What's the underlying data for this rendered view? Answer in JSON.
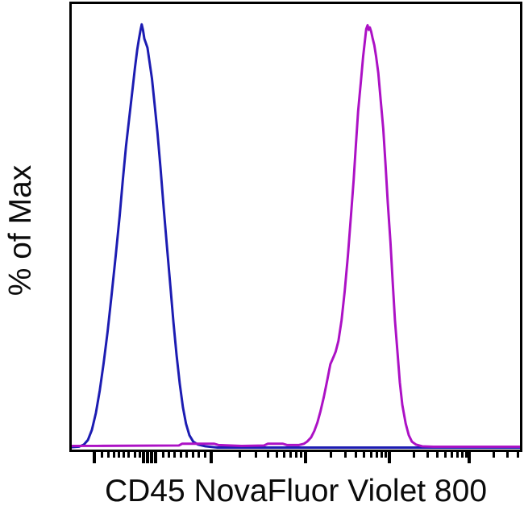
{
  "figure": {
    "xlabel": "CD45 NovaFluor Violet 800",
    "ylabel": "% of Max"
  },
  "chart_data": {
    "type": "line",
    "subtype": "flow-cytometry-histogram-overlay",
    "title": "",
    "xlabel": "CD45 NovaFluor Violet 800",
    "ylabel": "% of Max",
    "x_scale": "biexponential-log, tick marks only (no numeric labels shown)",
    "ylim": [
      0,
      104
    ],
    "grid": false,
    "legend": "none",
    "axis_color": "#000000",
    "x_ticks": {
      "major_fractions": [
        0.05,
        0.1607,
        0.1696,
        0.1786,
        0.1875,
        0.3107,
        0.5214,
        0.7089,
        0.8875
      ],
      "minor_fractions": [
        0.0679,
        0.0821,
        0.0946,
        0.1054,
        0.1152,
        0.1268,
        0.1402,
        0.1518,
        0.2036,
        0.2161,
        0.2286,
        0.2429,
        0.2554,
        0.2714,
        0.2839,
        0.2982,
        0.3741,
        0.4113,
        0.4375,
        0.458,
        0.4746,
        0.4887,
        0.5009,
        0.5116,
        0.5779,
        0.6109,
        0.6343,
        0.6525,
        0.6673,
        0.6798,
        0.6907,
        0.7002,
        0.7627,
        0.7941,
        0.8164,
        0.8339,
        0.8482,
        0.8604,
        0.8707,
        0.88,
        0.9413,
        0.9727,
        0.995
      ]
    },
    "series": [
      {
        "name": "blue-histogram",
        "color": "#1C1CB2",
        "points": [
          [
            0,
            0.1
          ],
          [
            0.016,
            0.2
          ],
          [
            0.027,
            0.7
          ],
          [
            0.036,
            1.8
          ],
          [
            0.045,
            4.2
          ],
          [
            0.054,
            8.2
          ],
          [
            0.0625,
            13.5
          ],
          [
            0.071,
            19.9
          ],
          [
            0.08,
            27.4
          ],
          [
            0.089,
            36.1
          ],
          [
            0.098,
            45.3
          ],
          [
            0.107,
            54.8
          ],
          [
            0.114,
            63.2
          ],
          [
            0.121,
            71.2
          ],
          [
            0.129,
            78.5
          ],
          [
            0.136,
            85.1
          ],
          [
            0.141,
            89.8
          ],
          [
            0.146,
            94
          ],
          [
            0.15,
            96.6
          ],
          [
            0.154,
            98.9
          ],
          [
            0.156,
            100
          ],
          [
            0.159,
            98.7
          ],
          [
            0.162,
            96.6
          ],
          [
            0.165,
            95.7
          ],
          [
            0.169,
            94.5
          ],
          [
            0.173,
            91.5
          ],
          [
            0.179,
            87.2
          ],
          [
            0.184,
            82.1
          ],
          [
            0.191,
            74.6
          ],
          [
            0.198,
            66.1
          ],
          [
            0.205,
            56.8
          ],
          [
            0.2125,
            47.4
          ],
          [
            0.22,
            38.2
          ],
          [
            0.227,
            29.5
          ],
          [
            0.234,
            21.8
          ],
          [
            0.241,
            15
          ],
          [
            0.248,
            9.5
          ],
          [
            0.255,
            5.6
          ],
          [
            0.2625,
            2.9
          ],
          [
            0.271,
            1.4
          ],
          [
            0.282,
            0.7
          ],
          [
            0.298,
            0.3
          ],
          [
            0.325,
            0
          ],
          [
            1,
            0
          ]
        ]
      },
      {
        "name": "magenta-histogram",
        "color": "#AC11C5",
        "points": [
          [
            0,
            0.4
          ],
          [
            0.057,
            0.4
          ],
          [
            0.239,
            0.5
          ],
          [
            0.246,
            0.9
          ],
          [
            0.257,
            0.9
          ],
          [
            0.318,
            0.9
          ],
          [
            0.327,
            0.6
          ],
          [
            0.379,
            0.4
          ],
          [
            0.429,
            0.5
          ],
          [
            0.4375,
            0.9
          ],
          [
            0.471,
            0.9
          ],
          [
            0.48,
            0.6
          ],
          [
            0.507,
            0.6
          ],
          [
            0.518,
            0.9
          ],
          [
            0.525,
            1.4
          ],
          [
            0.534,
            2.4
          ],
          [
            0.541,
            3.9
          ],
          [
            0.548,
            5.9
          ],
          [
            0.555,
            8.6
          ],
          [
            0.5625,
            12
          ],
          [
            0.57,
            15.9
          ],
          [
            0.577,
            19.7
          ],
          [
            0.584,
            21.4
          ],
          [
            0.589,
            22.7
          ],
          [
            0.595,
            25.2
          ],
          [
            0.602,
            30.1
          ],
          [
            0.609,
            36.9
          ],
          [
            0.616,
            45.3
          ],
          [
            0.623,
            54.9
          ],
          [
            0.629,
            63.2
          ],
          [
            0.634,
            71.5
          ],
          [
            0.639,
            79.5
          ],
          [
            0.645,
            86.4
          ],
          [
            0.65,
            92.3
          ],
          [
            0.654,
            96
          ],
          [
            0.657,
            98.9
          ],
          [
            0.66,
            99.8
          ],
          [
            0.6625,
            98.7
          ],
          [
            0.665,
            99.3
          ],
          [
            0.668,
            98.3
          ],
          [
            0.671,
            96.8
          ],
          [
            0.675,
            95.1
          ],
          [
            0.679,
            92.5
          ],
          [
            0.684,
            88.5
          ],
          [
            0.689,
            82.5
          ],
          [
            0.695,
            75.3
          ],
          [
            0.7,
            67
          ],
          [
            0.705,
            58
          ],
          [
            0.711,
            48.5
          ],
          [
            0.716,
            39.1
          ],
          [
            0.721,
            30.1
          ],
          [
            0.727,
            22.2
          ],
          [
            0.732,
            15.4
          ],
          [
            0.7375,
            10.1
          ],
          [
            0.745,
            5.7
          ],
          [
            0.752,
            2.9
          ],
          [
            0.759,
            1.4
          ],
          [
            0.768,
            0.7
          ],
          [
            0.782,
            0.3
          ],
          [
            0.807,
            0.2
          ],
          [
            1,
            0.2
          ]
        ]
      }
    ]
  }
}
